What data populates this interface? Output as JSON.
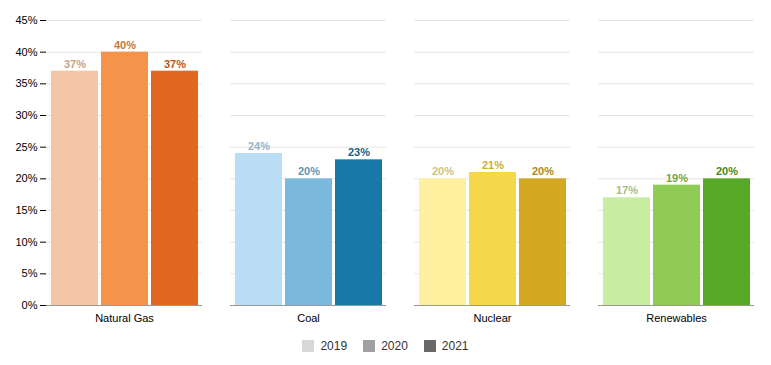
{
  "chart_data": {
    "type": "bar",
    "categories": [
      "Natural Gas",
      "Coal",
      "Nuclear",
      "Renewables"
    ],
    "series": [
      {
        "name": "2019",
        "color": "#D8D8D8",
        "values": [
          37,
          24,
          20,
          17
        ],
        "value_labels": [
          "37%",
          "24%",
          "20%",
          "17%"
        ],
        "colors": [
          "#F5C5A8",
          "#B8DDF5",
          "#FFF0A0",
          "#C8ECA0"
        ]
      },
      {
        "name": "2020",
        "color": "#A0A0A0",
        "values": [
          40,
          20,
          21,
          19
        ],
        "value_labels": [
          "40%",
          "20%",
          "21%",
          "19%"
        ],
        "colors": [
          "#F5934A",
          "#7AB8DC",
          "#F5D84A",
          "#90CC55"
        ]
      },
      {
        "name": "2021",
        "color": "#686868",
        "values": [
          37,
          23,
          20,
          20
        ],
        "value_labels": [
          "37%",
          "23%",
          "20%",
          "20%"
        ],
        "colors": [
          "#E06820",
          "#1878A8",
          "#D4A820",
          "#58A828"
        ]
      }
    ],
    "ylim": [
      0,
      45
    ],
    "yticks": [
      {
        "value": 0,
        "label": "0%"
      },
      {
        "value": 5,
        "label": "5%"
      },
      {
        "value": 10,
        "label": "10%"
      },
      {
        "value": 15,
        "label": "15%"
      },
      {
        "value": 20,
        "label": "20%"
      },
      {
        "value": 25,
        "label": "25%"
      },
      {
        "value": 30,
        "label": "30%"
      },
      {
        "value": 35,
        "label": "35%"
      },
      {
        "value": 40,
        "label": "40%"
      },
      {
        "value": 45,
        "label": "45%"
      }
    ],
    "grid": true,
    "data_labels": true,
    "legend": "bottom"
  }
}
